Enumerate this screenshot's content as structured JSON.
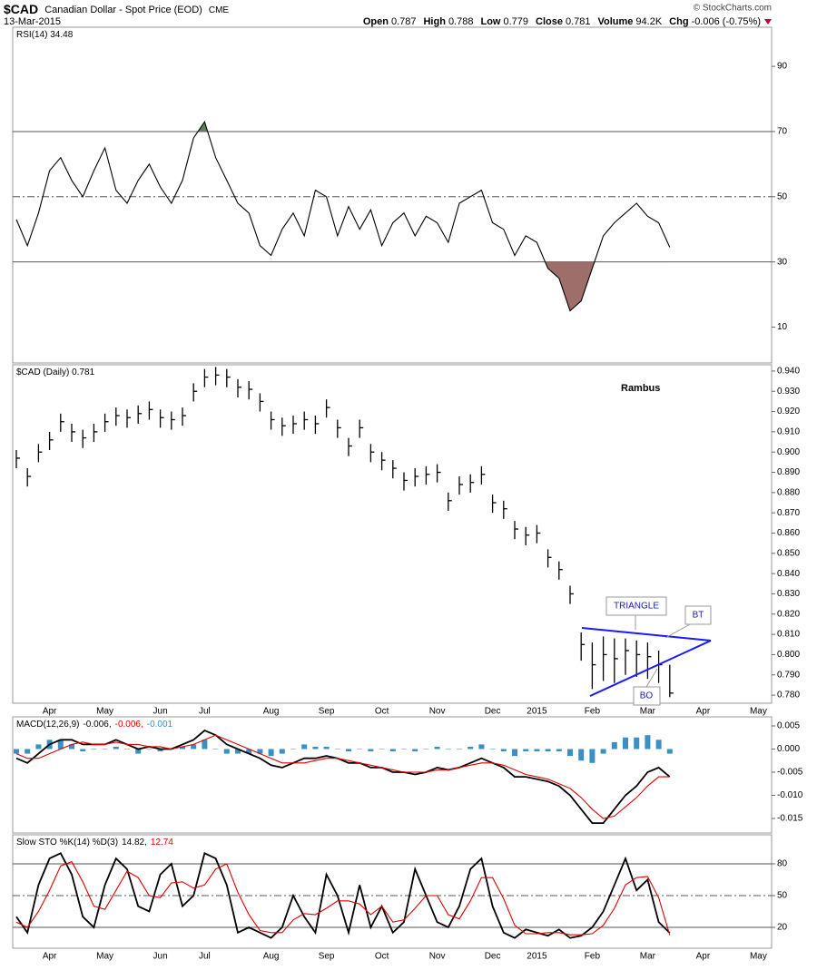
{
  "header": {
    "symbol": "$CAD",
    "name": "Canadian Dollar - Spot Price (EOD)",
    "exchange": "CME",
    "date": "13-Mar-2015",
    "copyright": "© StockCharts.com",
    "quote": [
      [
        "Open",
        "0.787"
      ],
      [
        "High",
        "0.788"
      ],
      [
        "Low",
        "0.779"
      ],
      [
        "Close",
        "0.781"
      ],
      [
        "Volume",
        "94.2K"
      ],
      [
        "Chg",
        "-0.006 (-0.75%)"
      ]
    ]
  },
  "chart_data": [
    {
      "type": "line",
      "title": "RSI(14) 34.48",
      "color": "#000000",
      "overbought_color": "#5f7f5f",
      "oversold_color": "#9e6e6a",
      "ylim": [
        -1,
        102
      ],
      "yticks": [
        10,
        30,
        50,
        70,
        90
      ],
      "values": [
        43,
        35,
        45,
        58,
        62,
        55,
        50,
        58,
        65,
        52,
        48,
        55,
        60,
        53,
        48,
        55,
        68,
        73,
        62,
        55,
        48,
        45,
        35,
        32,
        40,
        45,
        38,
        52,
        50,
        38,
        47,
        40,
        46,
        35,
        42,
        45,
        38,
        44,
        42,
        36,
        48,
        50,
        52,
        42,
        40,
        32,
        38,
        36,
        28,
        25,
        15,
        18,
        28,
        38,
        42,
        45,
        48,
        44,
        42,
        34.48,
        null,
        null,
        null,
        null,
        null,
        null,
        null,
        null
      ]
    },
    {
      "type": "ohlc",
      "title": "$CAD (Daily) 0.781",
      "color": "#000000",
      "ylim": [
        0.776,
        0.9431
      ],
      "yticks": [
        {
          "value": 0.78,
          "label": "0.780"
        },
        {
          "value": 0.79,
          "label": "0.790"
        },
        {
          "value": 0.8,
          "label": "0.800"
        },
        {
          "value": 0.81,
          "label": "0.810"
        },
        {
          "value": 0.82,
          "label": "0.820"
        },
        {
          "value": 0.83,
          "label": "0.830"
        },
        {
          "value": 0.84,
          "label": "0.840"
        },
        {
          "value": 0.85,
          "label": "0.850"
        },
        {
          "value": 0.86,
          "label": "0.860"
        },
        {
          "value": 0.87,
          "label": "0.870"
        },
        {
          "value": 0.88,
          "label": "0.880"
        },
        {
          "value": 0.89,
          "label": "0.890"
        },
        {
          "value": 0.9,
          "label": "0.900"
        },
        {
          "value": 0.91,
          "label": "0.910"
        },
        {
          "value": 0.92,
          "label": "0.920"
        },
        {
          "value": 0.93,
          "label": "0.930"
        },
        {
          "value": 0.94,
          "label": "0.940"
        }
      ],
      "categories": [
        null,
        null,
        null,
        "Apr",
        null,
        null,
        null,
        null,
        "May",
        null,
        null,
        null,
        null,
        "Jun",
        null,
        null,
        null,
        "Jul",
        null,
        null,
        null,
        null,
        null,
        "Aug",
        null,
        null,
        null,
        null,
        "Sep",
        null,
        null,
        null,
        null,
        "Oct",
        null,
        null,
        null,
        null,
        "Nov",
        null,
        null,
        null,
        null,
        "Dec",
        null,
        null,
        null,
        "2015",
        null,
        null,
        null,
        null,
        "Feb",
        null,
        null,
        null,
        null,
        "Mar",
        null,
        null,
        null,
        null,
        "Apr",
        null,
        null,
        null,
        null,
        "May"
      ],
      "high": [
        0.901,
        0.892,
        0.904,
        0.91,
        0.919,
        0.914,
        0.911,
        0.914,
        0.919,
        0.922,
        0.921,
        0.923,
        0.925,
        0.921,
        0.92,
        0.922,
        0.934,
        0.941,
        0.942,
        0.941,
        0.936,
        0.935,
        0.929,
        0.92,
        0.917,
        0.918,
        0.92,
        0.918,
        0.926,
        0.916,
        0.907,
        0.916,
        0.904,
        0.9,
        0.896,
        0.89,
        0.892,
        0.893,
        0.894,
        0.88,
        0.888,
        0.889,
        0.893,
        0.879,
        0.876,
        0.866,
        0.863,
        0.864,
        0.852,
        0.846,
        0.834,
        0.811,
        0.806,
        0.809,
        0.808,
        0.808,
        0.807,
        0.806,
        0.802,
        0.795,
        null,
        null,
        null,
        null,
        null,
        null,
        null,
        null
      ],
      "low": [
        0.892,
        0.883,
        0.895,
        0.901,
        0.91,
        0.905,
        0.902,
        0.905,
        0.91,
        0.913,
        0.912,
        0.914,
        0.916,
        0.912,
        0.911,
        0.913,
        0.925,
        0.932,
        0.933,
        0.932,
        0.927,
        0.926,
        0.92,
        0.911,
        0.908,
        0.909,
        0.911,
        0.909,
        0.917,
        0.907,
        0.898,
        0.907,
        0.895,
        0.891,
        0.887,
        0.881,
        0.883,
        0.884,
        0.885,
        0.871,
        0.879,
        0.88,
        0.884,
        0.87,
        0.867,
        0.857,
        0.854,
        0.855,
        0.843,
        0.837,
        0.825,
        0.797,
        0.783,
        0.787,
        0.786,
        0.79,
        0.789,
        0.788,
        0.786,
        0.779,
        null,
        null,
        null,
        null,
        null,
        null,
        null,
        null
      ],
      "close": [
        0.897,
        0.888,
        0.9,
        0.906,
        0.915,
        0.91,
        0.907,
        0.91,
        0.915,
        0.918,
        0.917,
        0.919,
        0.921,
        0.917,
        0.916,
        0.918,
        0.93,
        0.937,
        0.938,
        0.937,
        0.932,
        0.931,
        0.925,
        0.916,
        0.913,
        0.914,
        0.916,
        0.914,
        0.922,
        0.912,
        0.903,
        0.912,
        0.9,
        0.896,
        0.892,
        0.886,
        0.888,
        0.889,
        0.89,
        0.876,
        0.884,
        0.885,
        0.889,
        0.875,
        0.872,
        0.862,
        0.859,
        0.86,
        0.848,
        0.842,
        0.83,
        0.805,
        0.795,
        0.8,
        0.798,
        0.802,
        0.8,
        0.799,
        0.795,
        0.781,
        null,
        null,
        null,
        null,
        null,
        null,
        null,
        null
      ],
      "annotations": [
        "Rambus",
        "TRIANGLE",
        "BT",
        "BO"
      ]
    },
    {
      "type": "macd",
      "title": "MACD(12,26,9)",
      "legend_values": [
        "-0.006,",
        "-0.006,",
        "-0.001"
      ],
      "ylim": [
        -0.01814,
        0.00696
      ],
      "yticks": [
        {
          "value": -0.015,
          "label": "-0.015"
        },
        {
          "value": -0.01,
          "label": "-0.010"
        },
        {
          "value": -0.005,
          "label": "-0.005"
        },
        {
          "value": 0,
          "label": "0.000"
        },
        {
          "value": 0.005,
          "label": "0.005"
        }
      ],
      "series": [
        {
          "color": "#000000",
          "values": [
            -0.002,
            -0.003,
            -0.001,
            0.001,
            0.002,
            0.002,
            0.001,
            0.001,
            0.001,
            0.002,
            0.001,
            0,
            0.0005,
            0,
            0,
            0.001,
            0.002,
            0.004,
            0.003,
            0.001,
            0,
            -0.001,
            -0.002,
            -0.0035,
            -0.004,
            -0.003,
            -0.002,
            -0.002,
            -0.0015,
            -0.002,
            -0.003,
            -0.003,
            -0.004,
            -0.004,
            -0.005,
            -0.005,
            -0.0055,
            -0.005,
            -0.004,
            -0.0045,
            -0.004,
            -0.003,
            -0.002,
            -0.003,
            -0.004,
            -0.006,
            -0.006,
            -0.0065,
            -0.007,
            -0.008,
            -0.01,
            -0.013,
            -0.016,
            -0.016,
            -0.013,
            -0.01,
            -0.008,
            -0.005,
            -0.004,
            -0.006,
            null,
            null,
            null,
            null,
            null,
            null,
            null,
            null
          ]
        },
        {
          "color": "#e00000",
          "values": [
            -0.001,
            -0.002,
            -0.002,
            -0.001,
            0,
            0.001,
            0.0015,
            0.001,
            0.001,
            0.0015,
            0.001,
            0.001,
            0.0005,
            0.0005,
            0,
            0.0005,
            0.001,
            0.002,
            0.003,
            0.002,
            0.001,
            0,
            -0.001,
            -0.002,
            -0.003,
            -0.003,
            -0.003,
            -0.0025,
            -0.002,
            -0.002,
            -0.0025,
            -0.003,
            -0.0035,
            -0.004,
            -0.0045,
            -0.005,
            -0.005,
            -0.005,
            -0.0045,
            -0.0045,
            -0.004,
            -0.0035,
            -0.003,
            -0.003,
            -0.0035,
            -0.0045,
            -0.0055,
            -0.006,
            -0.0065,
            -0.0075,
            -0.0085,
            -0.0105,
            -0.013,
            -0.015,
            -0.0145,
            -0.0125,
            -0.0105,
            -0.008,
            -0.006,
            -0.006,
            null,
            null,
            null,
            null,
            null,
            null,
            null,
            null
          ]
        }
      ],
      "histogram_color": "#3a8fc4",
      "histogram": [
        -0.001,
        -0.001,
        0.001,
        0.002,
        0.002,
        0.001,
        -0.0005,
        0,
        0,
        0.0005,
        0,
        -0.001,
        0,
        -0.0005,
        0,
        0.0005,
        0.001,
        0.002,
        0,
        -0.001,
        -0.001,
        -0.001,
        -0.001,
        -0.0015,
        -0.001,
        0,
        0.001,
        0.0005,
        0.0005,
        0,
        -0.0005,
        0,
        -0.0005,
        0,
        -0.0005,
        0,
        -0.0005,
        0,
        0.0005,
        0,
        0,
        0.0005,
        0.001,
        0,
        -0.0005,
        -0.0015,
        -0.0005,
        -0.0005,
        -0.0005,
        -0.0005,
        -0.0015,
        -0.0025,
        -0.003,
        -0.001,
        0.0015,
        0.0025,
        0.0025,
        0.003,
        0.002,
        -0.001,
        null,
        null,
        null,
        null,
        null,
        null,
        null,
        null
      ]
    },
    {
      "type": "line",
      "title": "Slow STO %K(14) %D(3)",
      "legend_values": [
        "14.82,",
        "12.74"
      ],
      "ylim": [
        0.3,
        107.4
      ],
      "yticks": [
        20,
        50,
        80
      ],
      "categories": [
        null,
        null,
        null,
        "Apr",
        null,
        null,
        null,
        null,
        "May",
        null,
        null,
        null,
        null,
        "Jun",
        null,
        null,
        null,
        "Jul",
        null,
        null,
        null,
        null,
        null,
        "Aug",
        null,
        null,
        null,
        null,
        "Sep",
        null,
        null,
        null,
        null,
        "Oct",
        null,
        null,
        null,
        null,
        "Nov",
        null,
        null,
        null,
        null,
        "Dec",
        null,
        null,
        null,
        "2015",
        null,
        null,
        null,
        null,
        "Feb",
        null,
        null,
        null,
        null,
        "Mar",
        null,
        null,
        null,
        null,
        "Apr",
        null,
        null,
        null,
        null,
        "May"
      ],
      "series": [
        {
          "color": "#000000",
          "values": [
            30,
            15,
            60,
            85,
            90,
            70,
            30,
            20,
            60,
            85,
            75,
            40,
            35,
            70,
            80,
            40,
            50,
            90,
            85,
            60,
            15,
            20,
            15,
            10,
            20,
            50,
            30,
            15,
            70,
            50,
            15,
            60,
            20,
            40,
            15,
            25,
            75,
            50,
            25,
            20,
            40,
            75,
            85,
            40,
            15,
            10,
            18,
            15,
            12,
            18,
            10,
            12,
            20,
            35,
            60,
            85,
            55,
            65,
            25,
            14.82,
            null,
            null,
            null,
            null,
            null,
            null,
            null,
            null
          ]
        },
        {
          "color": "#e00000",
          "values": [
            25,
            20,
            35,
            55,
            78,
            82,
            63,
            40,
            37,
            55,
            73,
            67,
            50,
            48,
            62,
            63,
            57,
            60,
            75,
            80,
            53,
            32,
            17,
            15,
            15,
            27,
            33,
            32,
            38,
            45,
            45,
            42,
            32,
            40,
            25,
            27,
            38,
            50,
            50,
            32,
            28,
            45,
            67,
            67,
            47,
            22,
            14,
            14,
            15,
            15,
            13,
            13,
            14,
            22,
            38,
            60,
            67,
            68,
            48,
            12.74,
            null,
            null,
            null,
            null,
            null,
            null,
            null,
            null
          ]
        }
      ]
    }
  ]
}
